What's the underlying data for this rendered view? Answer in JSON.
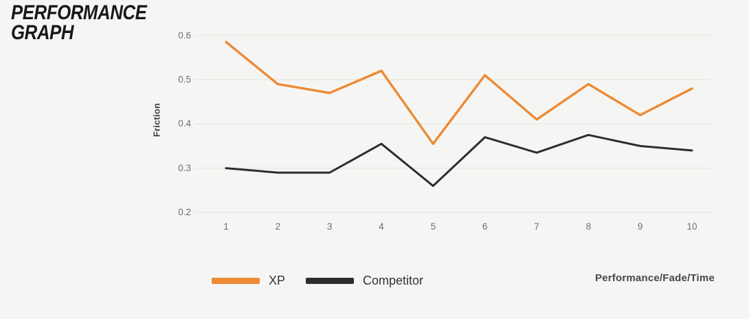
{
  "title": {
    "line1": "PERFORMANCE",
    "line2": "GRAPH"
  },
  "colors": {
    "background": "#f5f5f4",
    "accent_orange": "#ed8a33",
    "line_black": "#2d2d2d",
    "gridline": "#e8e8e5",
    "tick_text": "#6e6e6e"
  },
  "chart_data": {
    "type": "line",
    "title": "Performance Graph",
    "x": [
      1,
      2,
      3,
      4,
      5,
      6,
      7,
      8,
      9,
      10
    ],
    "series": [
      {
        "name": "XP",
        "color": "#ed8a33",
        "values": [
          0.585,
          0.49,
          0.47,
          0.52,
          0.355,
          0.51,
          0.41,
          0.49,
          0.42,
          0.48
        ]
      },
      {
        "name": "Competitor",
        "color": "#2d2d2d",
        "values": [
          0.3,
          0.29,
          0.29,
          0.355,
          0.26,
          0.37,
          0.335,
          0.375,
          0.35,
          0.34
        ]
      }
    ],
    "xlabel": "Performance/Fade/Time",
    "ylabel": "Friction",
    "ylim": [
      0.2,
      0.6
    ],
    "yticks": [
      "0.2",
      "0.3",
      "0.4",
      "0.5",
      "0.6"
    ],
    "xticks": [
      "1",
      "2",
      "3",
      "4",
      "5",
      "6",
      "7",
      "8",
      "9",
      "10"
    ],
    "grid": "horizontal",
    "legend_position": "bottom-left"
  }
}
